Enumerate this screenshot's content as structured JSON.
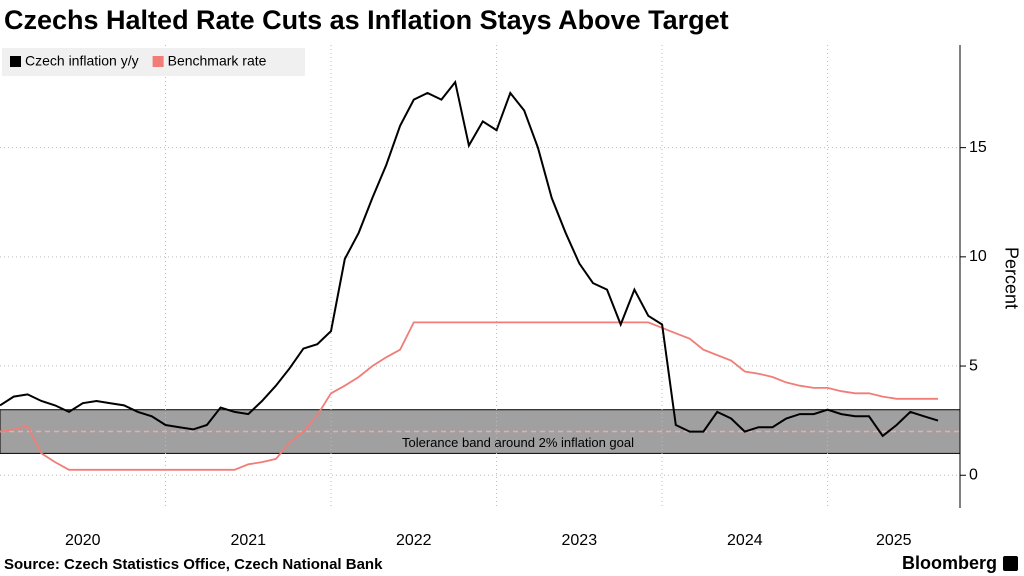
{
  "chart_data": {
    "type": "line",
    "title": "Czechs Halted Rate Cuts as Inflation Stays Above Target",
    "y_label": "Percent",
    "source": "Source: Czech Statistics Office, Czech National Bank",
    "brand": "Bloomberg",
    "x": [
      2020,
      2020.083,
      2020.167,
      2020.25,
      2020.333,
      2020.417,
      2020.5,
      2020.583,
      2020.667,
      2020.75,
      2020.833,
      2020.917,
      2021,
      2021.083,
      2021.167,
      2021.25,
      2021.333,
      2021.417,
      2021.5,
      2021.583,
      2021.667,
      2021.75,
      2021.833,
      2021.917,
      2022,
      2022.083,
      2022.167,
      2022.25,
      2022.333,
      2022.417,
      2022.5,
      2022.583,
      2022.667,
      2022.75,
      2022.833,
      2022.917,
      2023,
      2023.083,
      2023.167,
      2023.25,
      2023.333,
      2023.417,
      2023.5,
      2023.583,
      2023.667,
      2023.75,
      2023.833,
      2023.917,
      2024,
      2024.083,
      2024.167,
      2024.25,
      2024.333,
      2024.417,
      2024.5,
      2024.583,
      2024.667,
      2024.75,
      2024.833,
      2024.917,
      2025,
      2025.083,
      2025.167,
      2025.25,
      2025.333,
      2025.417,
      2025.5,
      2025.583,
      2025.667
    ],
    "series": [
      {
        "name": "Czech inflation y/y",
        "color": "#000000",
        "values": [
          3.2,
          3.6,
          3.7,
          3.4,
          3.2,
          2.9,
          3.3,
          3.4,
          3.3,
          3.2,
          2.9,
          2.7,
          2.3,
          2.2,
          2.1,
          2.3,
          3.1,
          2.9,
          2.8,
          3.4,
          4.1,
          4.9,
          5.8,
          6.0,
          6.6,
          9.9,
          11.1,
          12.7,
          14.2,
          16.0,
          17.2,
          17.5,
          17.2,
          18.0,
          15.1,
          16.2,
          15.8,
          17.5,
          16.7,
          15.0,
          12.7,
          11.1,
          9.7,
          8.8,
          8.5,
          6.9,
          8.5,
          7.3,
          6.9,
          2.3,
          2.0,
          2.0,
          2.9,
          2.6,
          2.0,
          2.2,
          2.2,
          2.6,
          2.8,
          2.8,
          3.0,
          2.8,
          2.7,
          2.7,
          1.8,
          2.3,
          2.9,
          2.7,
          2.5
        ]
      },
      {
        "name": "Benchmark rate",
        "color": "#f07d78",
        "values": [
          2.0,
          2.1,
          2.25,
          1.0,
          0.6,
          0.25,
          0.25,
          0.25,
          0.25,
          0.25,
          0.25,
          0.25,
          0.25,
          0.25,
          0.25,
          0.25,
          0.25,
          0.25,
          0.5,
          0.6,
          0.75,
          1.5,
          2.0,
          2.75,
          3.75,
          4.1,
          4.5,
          5.0,
          5.4,
          5.75,
          7.0,
          7.0,
          7.0,
          7.0,
          7.0,
          7.0,
          7.0,
          7.0,
          7.0,
          7.0,
          7.0,
          7.0,
          7.0,
          7.0,
          7.0,
          7.0,
          7.0,
          7.0,
          6.75,
          6.5,
          6.25,
          5.75,
          5.5,
          5.25,
          4.75,
          4.65,
          4.5,
          4.25,
          4.1,
          4.0,
          4.0,
          3.85,
          3.75,
          3.75,
          3.6,
          3.5,
          3.5,
          3.5,
          3.5
        ]
      }
    ],
    "band": {
      "from": 1,
      "to": 3,
      "target": 2,
      "label": "Tolerance band around 2% inflation goal"
    },
    "xlim": [
      2020,
      2025.8
    ],
    "xticks": [
      2021,
      2022,
      2023,
      2024,
      2025
    ],
    "year_labels": [
      {
        "value": 2020.5,
        "label": "2020"
      },
      {
        "value": 2021.5,
        "label": "2021"
      },
      {
        "value": 2022.5,
        "label": "2022"
      },
      {
        "value": 2023.5,
        "label": "2023"
      },
      {
        "value": 2024.5,
        "label": "2024"
      },
      {
        "value": 2025.4,
        "label": "2025"
      }
    ],
    "ylim": [
      -1.5,
      19.7
    ],
    "yticks": [
      0,
      5,
      10,
      15
    ],
    "legend": "top-left"
  }
}
